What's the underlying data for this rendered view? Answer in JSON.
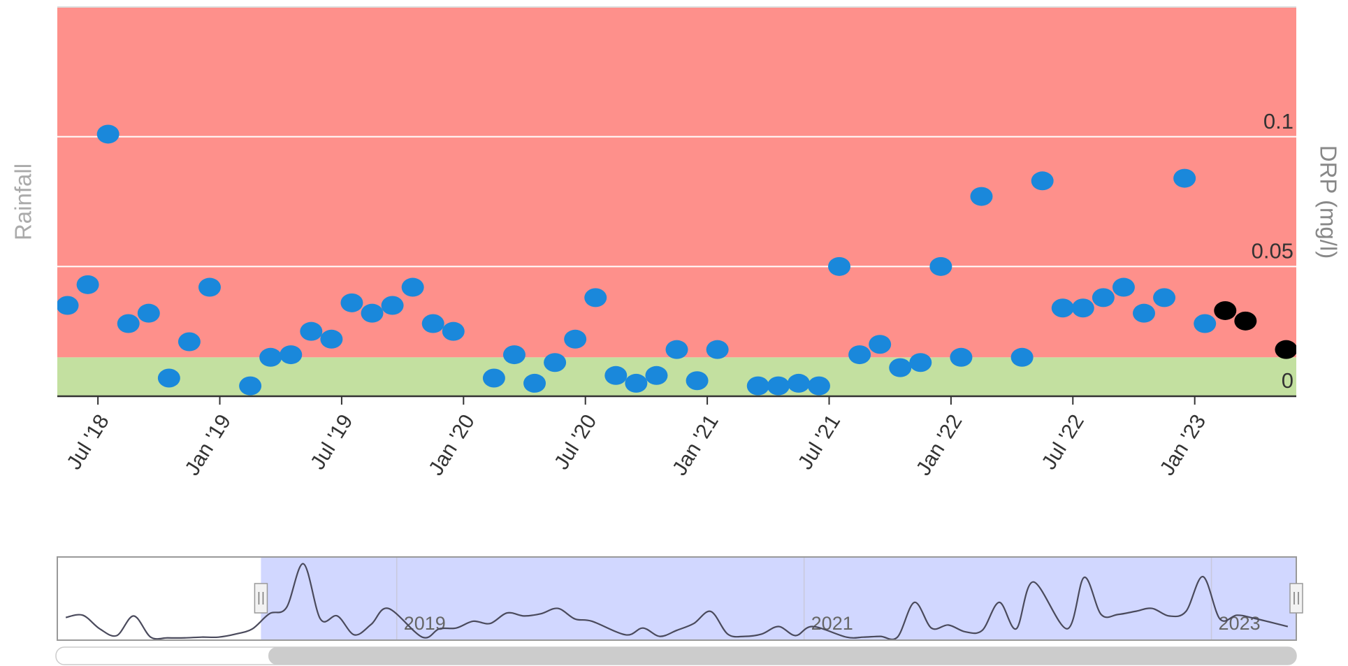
{
  "chart_data": {
    "type": "scatter",
    "y_label": "DRP (mg/l)",
    "y2_label": "Rainfall",
    "xlim": [
      "2018-05",
      "2023-06"
    ],
    "xticks": [
      {
        "value": "2018-07",
        "label": "Jul '18"
      },
      {
        "value": "2019-01",
        "label": "Jan '19"
      },
      {
        "value": "2019-07",
        "label": "Jul '19"
      },
      {
        "value": "2020-01",
        "label": "Jan '20"
      },
      {
        "value": "2020-07",
        "label": "Jul '20"
      },
      {
        "value": "2021-01",
        "label": "Jan '21"
      },
      {
        "value": "2021-07",
        "label": "Jul '21"
      },
      {
        "value": "2022-01",
        "label": "Jan '22"
      },
      {
        "value": "2022-07",
        "label": "Jul '22"
      },
      {
        "value": "2023-01",
        "label": "Jan '23"
      }
    ],
    "ylim": [
      0,
      0.15
    ],
    "yticks": [
      0,
      0.05,
      0.1
    ],
    "grid": true,
    "bands": [
      {
        "from": 0,
        "to": 0.015,
        "color": "#c3e0a0"
      },
      {
        "from": 0.015,
        "to": 0.15,
        "color": "#fe908b"
      }
    ],
    "series": [
      {
        "color": "#1a88db",
        "x": [
          "2018-05",
          "2018-06",
          "2018-07",
          "2018-08",
          "2018-09",
          "2018-10",
          "2018-11",
          "2018-12",
          "2019-02",
          "2019-03",
          "2019-04",
          "2019-05",
          "2019-06",
          "2019-07",
          "2019-08",
          "2019-09",
          "2019-10",
          "2019-11",
          "2019-12",
          "2020-02",
          "2020-03",
          "2020-04",
          "2020-05",
          "2020-06",
          "2020-07",
          "2020-08",
          "2020-09",
          "2020-10",
          "2020-11",
          "2020-12",
          "2021-01",
          "2021-03",
          "2021-04",
          "2021-05",
          "2021-06",
          "2021-07",
          "2021-08",
          "2021-09",
          "2021-10",
          "2021-11",
          "2021-12",
          "2022-01",
          "2022-02",
          "2022-04",
          "2022-05",
          "2022-06",
          "2022-07",
          "2022-08",
          "2022-09",
          "2022-10",
          "2022-11",
          "2022-12",
          "2023-01"
        ],
        "values": [
          0.035,
          0.043,
          0.101,
          0.028,
          0.032,
          0.007,
          0.021,
          0.042,
          0.004,
          0.015,
          0.016,
          0.025,
          0.022,
          0.036,
          0.032,
          0.035,
          0.042,
          0.028,
          0.025,
          0.007,
          0.016,
          0.005,
          0.013,
          0.022,
          0.038,
          0.008,
          0.005,
          0.008,
          0.018,
          0.006,
          0.018,
          0.004,
          0.004,
          0.005,
          0.004,
          0.05,
          0.016,
          0.02,
          0.011,
          0.013,
          0.05,
          0.015,
          0.077,
          0.015,
          0.083,
          0.034,
          0.034,
          0.038,
          0.042,
          0.032,
          0.038,
          0.084,
          0.028
        ]
      },
      {
        "color": "#000000",
        "x": [
          "2023-02",
          "2023-03",
          "2023-05"
        ],
        "values": [
          0.033,
          0.029,
          0.018
        ]
      }
    ],
    "navigator": {
      "xlim": [
        "2017-05",
        "2023-06"
      ],
      "xticks": [
        {
          "value": "2019-01",
          "label": "2019"
        },
        {
          "value": "2021-01",
          "label": "2021"
        },
        {
          "value": "2023-01",
          "label": "2023"
        }
      ],
      "ylim": [
        0,
        0.11
      ],
      "x": [
        "2017-05",
        "2017-06",
        "2017-07",
        "2017-08",
        "2017-09",
        "2017-10",
        "2017-11",
        "2017-12",
        "2018-01",
        "2018-02",
        "2018-03",
        "2018-04"
      ],
      "values": [
        0.03,
        0.033,
        0.015,
        0.006,
        0.032,
        0.004,
        0.003,
        0.003,
        0.004,
        0.004,
        0.008,
        0.015
      ]
    }
  }
}
